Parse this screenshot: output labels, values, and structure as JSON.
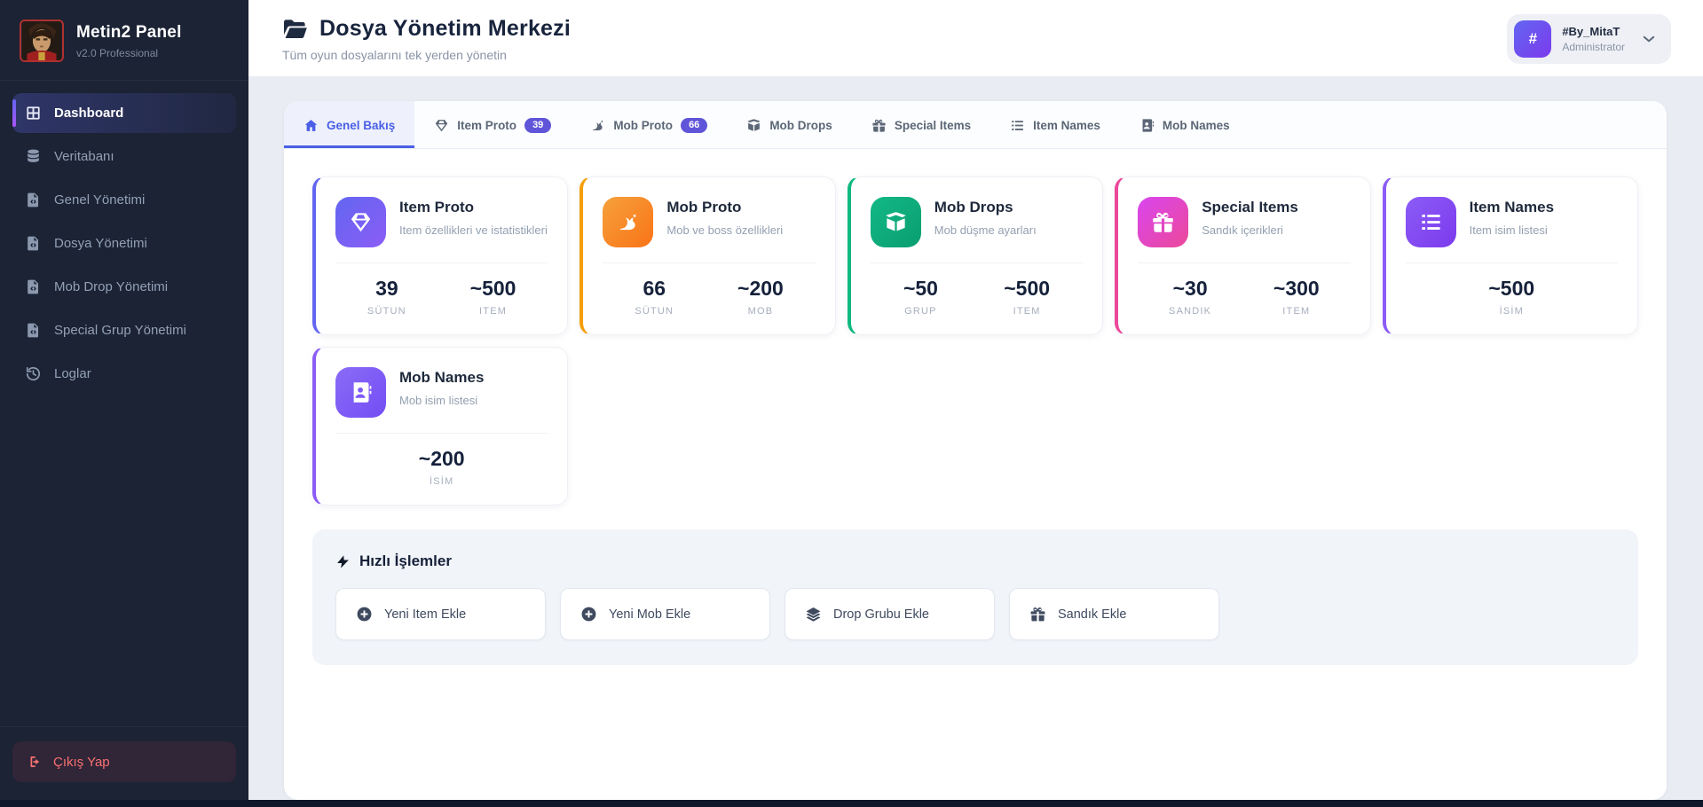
{
  "sidebar": {
    "brand": {
      "title": "Metin2 Panel",
      "subtitle": "v2.0 Professional"
    },
    "items": [
      {
        "label": "Dashboard",
        "icon": "dashboard-grid",
        "active": true
      },
      {
        "label": "Veritabanı",
        "icon": "database",
        "active": false
      },
      {
        "label": "Genel Yönetimi",
        "icon": "file-code",
        "active": false
      },
      {
        "label": "Dosya Yönetimi",
        "icon": "file-code",
        "active": false
      },
      {
        "label": "Mob Drop Yönetimi",
        "icon": "file-code",
        "active": false
      },
      {
        "label": "Special Grup Yönetimi",
        "icon": "file-code",
        "active": false
      },
      {
        "label": "Loglar",
        "icon": "history",
        "active": false
      }
    ],
    "logout_label": "Çıkış Yap"
  },
  "header": {
    "title": "Dosya Yönetim Merkezi",
    "subtitle": "Tüm oyun dosyalarını tek yerden yönetin",
    "user": {
      "name": "#By_MitaT",
      "role": "Administrator",
      "avatar_symbol": "#"
    }
  },
  "tabs": [
    {
      "label": "Genel Bakış",
      "icon": "home",
      "badge": null,
      "active": true
    },
    {
      "label": "Item Proto",
      "icon": "gem",
      "badge": "39",
      "active": false
    },
    {
      "label": "Mob Proto",
      "icon": "dragon",
      "badge": "66",
      "active": false
    },
    {
      "label": "Mob Drops",
      "icon": "box-open",
      "badge": null,
      "active": false
    },
    {
      "label": "Special Items",
      "icon": "gift",
      "badge": null,
      "active": false
    },
    {
      "label": "Item Names",
      "icon": "list",
      "badge": null,
      "active": false
    },
    {
      "label": "Mob Names",
      "icon": "address-book",
      "badge": null,
      "active": false
    }
  ],
  "cards": [
    {
      "title": "Item Proto",
      "description": "Item özellikleri ve istatistikleri",
      "icon": "gem",
      "accent": "#6366f1",
      "gradient": [
        "#6366f1",
        "#8b5cf6"
      ],
      "stats": [
        {
          "value": "39",
          "label": "SÜTUN"
        },
        {
          "value": "~500",
          "label": "ITEM"
        }
      ]
    },
    {
      "title": "Mob Proto",
      "description": "Mob ve boss özellikleri",
      "icon": "dragon",
      "accent": "#f59e0b",
      "gradient": [
        "#f6a13c",
        "#f97316"
      ],
      "stats": [
        {
          "value": "66",
          "label": "SÜTUN"
        },
        {
          "value": "~200",
          "label": "MOB"
        }
      ]
    },
    {
      "title": "Mob Drops",
      "description": "Mob düşme ayarları",
      "icon": "box-open",
      "accent": "#10b981",
      "gradient": [
        "#12b886",
        "#0a9e70"
      ],
      "stats": [
        {
          "value": "~50",
          "label": "GRUP"
        },
        {
          "value": "~500",
          "label": "ITEM"
        }
      ]
    },
    {
      "title": "Special Items",
      "description": "Sandık içerikleri",
      "icon": "gift",
      "accent": "#ec4899",
      "gradient": [
        "#d946ef",
        "#ec4899"
      ],
      "stats": [
        {
          "value": "~30",
          "label": "SANDIK"
        },
        {
          "value": "~300",
          "label": "ITEM"
        }
      ]
    },
    {
      "title": "Item Names",
      "description": "Item isim listesi",
      "icon": "list",
      "accent": "#8b5cf6",
      "gradient": [
        "#8b5cf6",
        "#7c3aed"
      ],
      "stats": [
        {
          "value": "~500",
          "label": "İSİM"
        }
      ]
    },
    {
      "title": "Mob Names",
      "description": "Mob isim listesi",
      "icon": "address-book",
      "accent": "#8b5cf6",
      "gradient": [
        "#8a6cf6",
        "#744df5"
      ],
      "stats": [
        {
          "value": "~200",
          "label": "İSİM"
        }
      ]
    }
  ],
  "quick_actions": {
    "title": "Hızlı İşlemler",
    "icon": "bolt",
    "buttons": [
      {
        "label": "Yeni Item Ekle",
        "icon": "plus-circle"
      },
      {
        "label": "Yeni Mob Ekle",
        "icon": "plus-circle"
      },
      {
        "label": "Drop Grubu Ekle",
        "icon": "layers"
      },
      {
        "label": "Sandık Ekle",
        "icon": "gift"
      }
    ]
  },
  "colors": {
    "sidebar_bg": "#1b2334",
    "active_accent": "#6366f1",
    "tab_active": "#4a5fe6",
    "badge_bg": "#6055d8",
    "logout_text": "#f87171",
    "content_bg": "#e9ecf2"
  }
}
